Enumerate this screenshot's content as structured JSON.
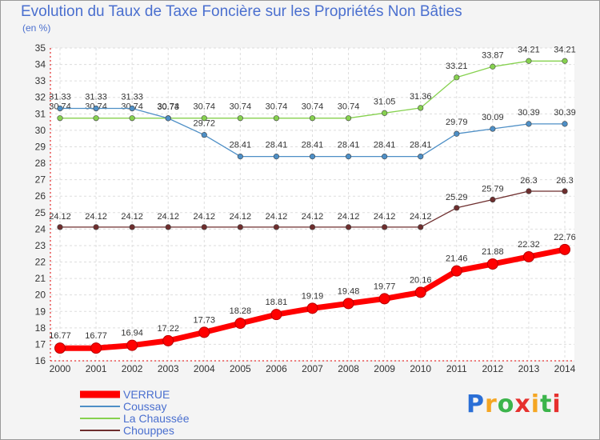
{
  "chart_data": {
    "type": "line",
    "title": "Evolution du Taux de Taxe Foncière sur les Propriétés Non Bâties",
    "ylabel": "(en %)",
    "xlabel": "",
    "x": [
      "2000",
      "2001",
      "2002",
      "2003",
      "2004",
      "2005",
      "2006",
      "2007",
      "2008",
      "2009",
      "2010",
      "2011",
      "2012",
      "2013",
      "2014"
    ],
    "ylim": [
      16,
      35
    ],
    "yticks": [
      16,
      17,
      18,
      19,
      20,
      21,
      22,
      23,
      24,
      25,
      26,
      27,
      28,
      29,
      30,
      31,
      32,
      33,
      34,
      35
    ],
    "grid": true,
    "legend_position": "bottom-left",
    "series": [
      {
        "name": "VERRUE",
        "color": "#ff0000",
        "values": [
          16.77,
          16.77,
          16.94,
          17.22,
          17.73,
          18.28,
          18.81,
          19.19,
          19.48,
          19.77,
          20.16,
          21.46,
          21.88,
          22.32,
          22.76
        ],
        "labels": [
          "16.77",
          "16.77",
          "16.94",
          "17.22",
          "17.73",
          "18.28",
          "18.81",
          "19.19",
          "19.48",
          "19.77",
          "20.16",
          "21.46",
          "21.88",
          "22.32",
          "22.76"
        ]
      },
      {
        "name": "Coussay",
        "color": "#4e8fc6",
        "values": [
          31.33,
          31.33,
          31.33,
          30.73,
          29.72,
          28.41,
          28.41,
          28.41,
          28.41,
          28.41,
          28.41,
          29.79,
          30.09,
          30.39,
          30.39
        ],
        "labels": [
          "31.33",
          "31.33",
          "31.33",
          "30.73",
          "29.72",
          "28.41",
          "28.41",
          "28.41",
          "28.41",
          "28.41",
          "28.41",
          "29.79",
          "30.09",
          "30.39",
          "30.39"
        ]
      },
      {
        "name": "La Chaussée",
        "color": "#86d14f",
        "values": [
          30.74,
          30.74,
          30.74,
          30.74,
          30.74,
          30.74,
          30.74,
          30.74,
          30.74,
          31.05,
          31.36,
          33.21,
          33.87,
          34.21,
          34.21
        ],
        "labels": [
          "30.74",
          "30.74",
          "30.74",
          "30.74",
          "30.74",
          "30.74",
          "30.74",
          "30.74",
          "30.74",
          "31.05",
          "31.36",
          "33.21",
          "33.87",
          "34.21",
          "34.21"
        ]
      },
      {
        "name": "Chouppes",
        "color": "#6e2e2e",
        "values": [
          24.12,
          24.12,
          24.12,
          24.12,
          24.12,
          24.12,
          24.12,
          24.12,
          24.12,
          24.12,
          24.12,
          25.29,
          25.79,
          26.3,
          26.3
        ],
        "labels": [
          "24.12",
          "24.12",
          "24.12",
          "24.12",
          "24.12",
          "24.12",
          "24.12",
          "24.12",
          "24.12",
          "24.12",
          "24.12",
          "25.29",
          "25.79",
          "26.3",
          "26.3"
        ]
      }
    ]
  },
  "logo": {
    "letters": [
      "P",
      "r",
      "o",
      "x",
      "i",
      "t",
      "i"
    ],
    "colors": [
      "#2b6fd6",
      "#f5a623",
      "#3cb44b",
      "#e6312e",
      "#f5a623",
      "#3cb44b",
      "#e6312e"
    ]
  }
}
